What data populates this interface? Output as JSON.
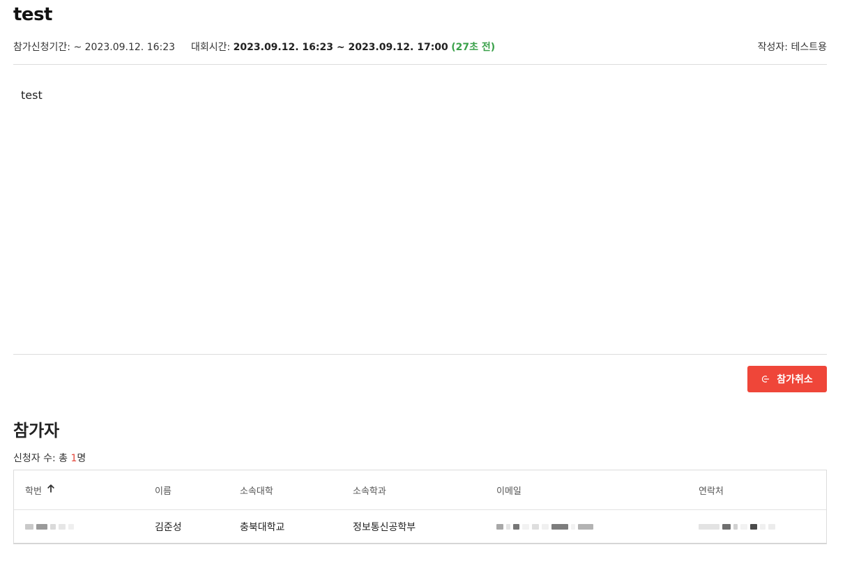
{
  "contest": {
    "title": "test",
    "application_period_label": "참가신청기간:",
    "application_period_value": "~ 2023.09.12. 16:23",
    "contest_time_label": "대회시간:",
    "contest_time_value": "2023.09.12. 16:23 ~ 2023.09.12. 17:00",
    "remaining": "(27초 전)",
    "author_label": "작성자:",
    "author_value": "테스트용",
    "body": "test"
  },
  "actions": {
    "cancel_label": "참가취소",
    "cancel_icon": "logout-icon",
    "cancel_color": "#ef4639"
  },
  "participants": {
    "section_title": "참가자",
    "count_prefix": "신청자 수: 총 ",
    "count_value": "1",
    "count_suffix": "명",
    "columns": [
      "학번",
      "이름",
      "소속대학",
      "소속학과",
      "이메일",
      "연락처"
    ],
    "sort_icon": "arrow-up-icon",
    "rows": [
      {
        "name": "김준성",
        "college": "충북대학교",
        "department": "정보통신공학부"
      }
    ]
  },
  "colors": {
    "accent_red": "#ef4639",
    "remaining_green": "#3aa14a",
    "count_red": "#e3463a"
  }
}
